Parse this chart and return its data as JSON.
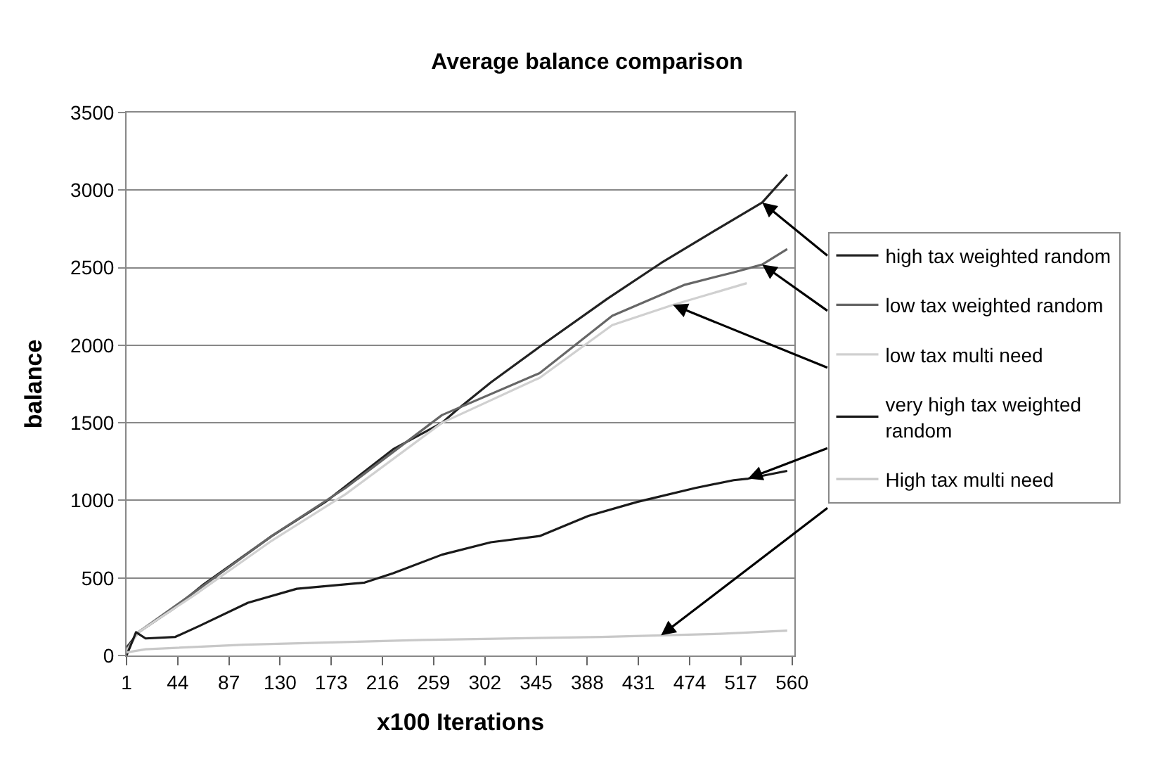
{
  "chart_data": {
    "type": "line",
    "title": "Average balance comparison",
    "xlabel": "x100 Iterations",
    "ylabel": "balance",
    "xlim": [
      1,
      562
    ],
    "xticks": [
      1,
      44,
      87,
      130,
      173,
      216,
      259,
      302,
      345,
      388,
      431,
      474,
      517,
      560
    ],
    "ylim": [
      0,
      3500
    ],
    "yticks": [
      0,
      500,
      1000,
      1500,
      2000,
      2500,
      3000,
      3500
    ],
    "grid": "y",
    "legend": "right",
    "marker": "none",
    "line_style": "solid",
    "series": [
      {
        "name": "high tax weighted random",
        "color": "#222222",
        "x": [
          1,
          11,
          42,
          66,
          123,
          168,
          225,
          266,
          278,
          307,
          348,
          405,
          450,
          491,
          535,
          556
        ],
        "values": [
          50,
          150,
          310,
          460,
          770,
          990,
          1330,
          1500,
          1580,
          1760,
          1990,
          2300,
          2530,
          2720,
          2920,
          3100
        ]
      },
      {
        "name": "low tax weighted random",
        "color": "#666666",
        "x": [
          1,
          11,
          62,
          123,
          185,
          266,
          348,
          409,
          470,
          511,
          535,
          556
        ],
        "values": [
          40,
          150,
          430,
          770,
          1080,
          1550,
          1820,
          2190,
          2390,
          2470,
          2520,
          2620
        ]
      },
      {
        "name": "low tax multi need",
        "color": "#d0d0d0",
        "x": [
          1,
          11,
          62,
          123,
          185,
          266,
          348,
          409,
          460,
          522
        ],
        "values": [
          30,
          150,
          410,
          740,
          1040,
          1500,
          1790,
          2130,
          2260,
          2400
        ]
      },
      {
        "name": "very high tax weighted random",
        "color": "#1a1a1a",
        "x": [
          1,
          9,
          17,
          42,
          62,
          103,
          144,
          201,
          225,
          266,
          307,
          348,
          389,
          430,
          479,
          511,
          523,
          556
        ],
        "values": [
          0,
          150,
          110,
          120,
          190,
          340,
          430,
          470,
          530,
          650,
          730,
          770,
          900,
          990,
          1080,
          1130,
          1140,
          1190
        ]
      },
      {
        "name": "High tax multi need",
        "color": "#c8c8c8",
        "x": [
          1,
          17,
          100,
          250,
          400,
          450,
          500,
          556
        ],
        "values": [
          20,
          40,
          70,
          100,
          120,
          130,
          140,
          160
        ]
      }
    ]
  }
}
